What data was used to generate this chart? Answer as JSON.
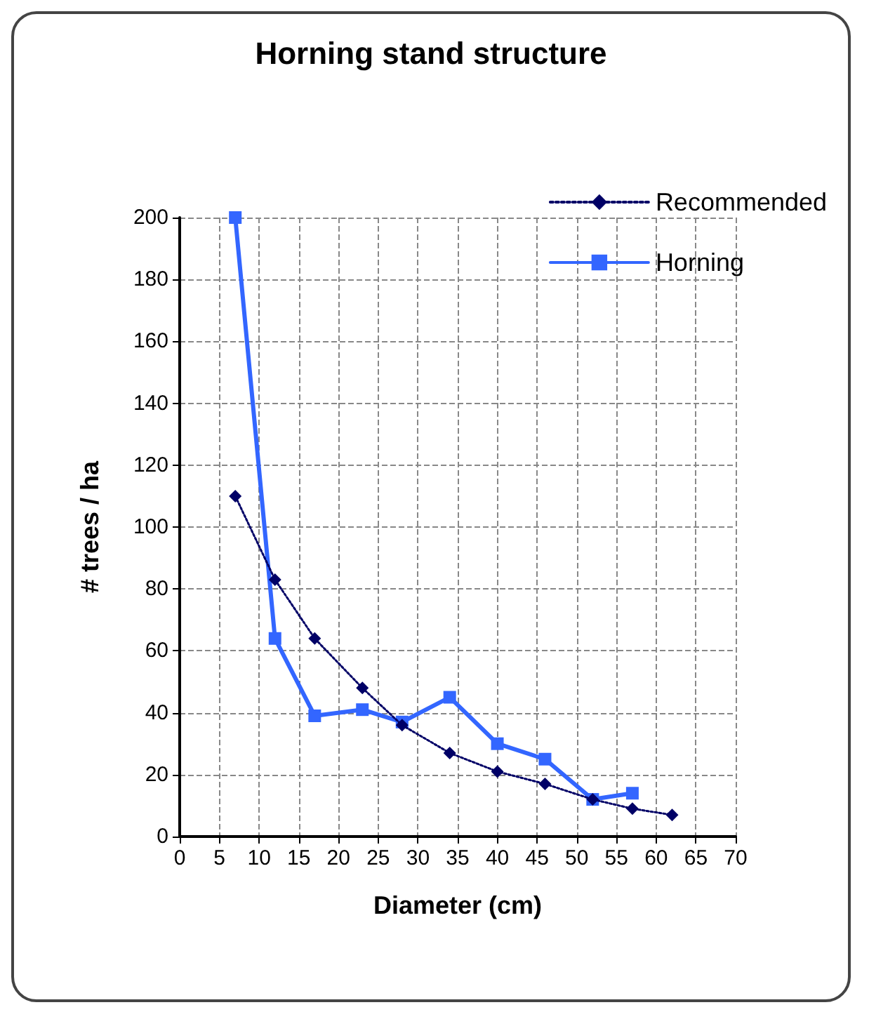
{
  "chart_data": {
    "type": "line",
    "title": "Horning stand structure",
    "xlabel": "Diameter (cm)",
    "ylabel": "# trees / ha",
    "xlim": [
      0,
      70
    ],
    "xticks": [
      0,
      5,
      10,
      15,
      20,
      25,
      30,
      35,
      40,
      45,
      50,
      55,
      60,
      65,
      70
    ],
    "ylim": [
      0,
      200
    ],
    "yticks": [
      0,
      20,
      40,
      60,
      80,
      100,
      120,
      140,
      160,
      180,
      200
    ],
    "grid": true,
    "legend": "top right",
    "series": [
      {
        "name": "Recommended",
        "color": "#000066",
        "marker": "diamond",
        "line_style": "dotted",
        "x": [
          7,
          12,
          17,
          23,
          28,
          34,
          40,
          46,
          52,
          57,
          62
        ],
        "values": [
          110,
          83,
          64,
          48,
          36,
          27,
          21,
          17,
          12,
          9,
          7
        ]
      },
      {
        "name": "Horning",
        "color": "#3366ff",
        "marker": "square",
        "line_style": "solid",
        "x": [
          7,
          12,
          17,
          23,
          28,
          34,
          40,
          46,
          52,
          57
        ],
        "values": [
          200,
          64,
          39,
          41,
          37,
          45,
          30,
          25,
          12,
          14
        ]
      }
    ]
  }
}
